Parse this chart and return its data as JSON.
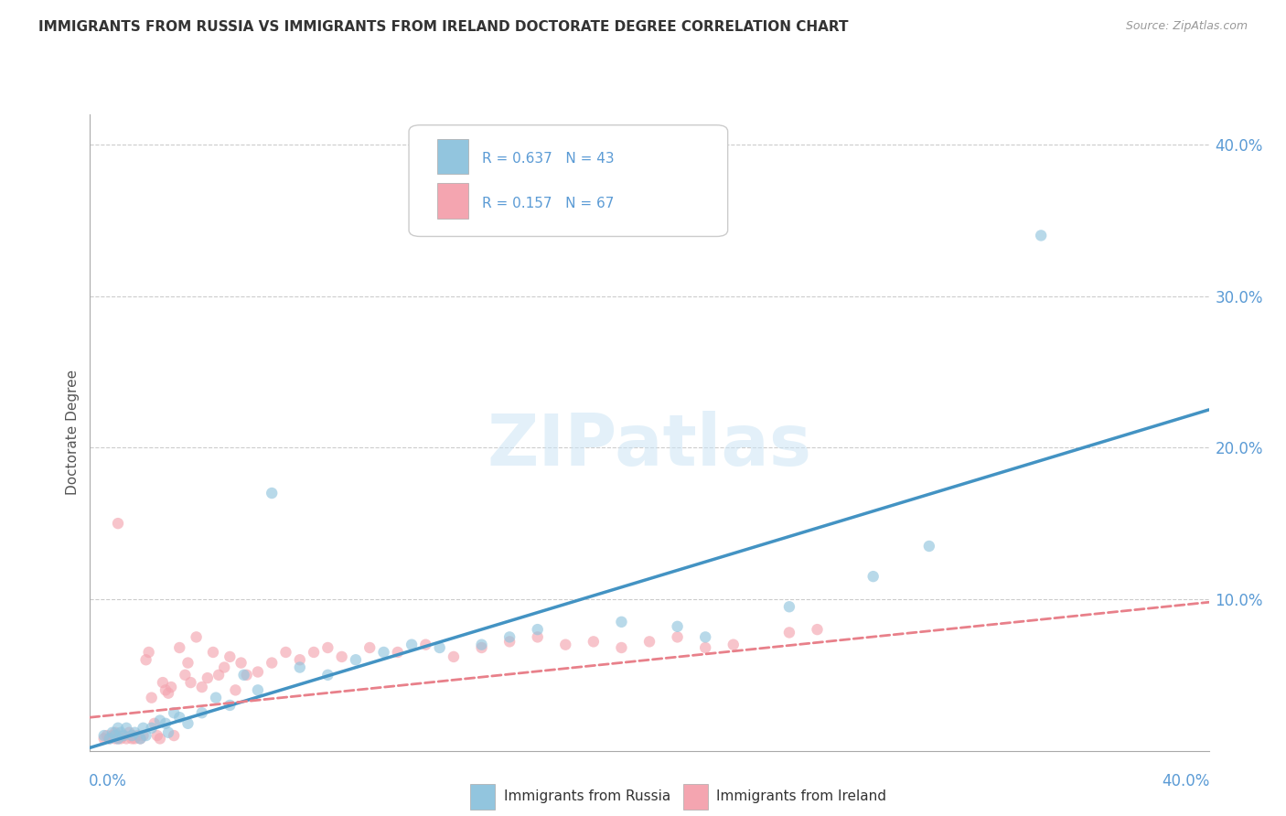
{
  "title": "IMMIGRANTS FROM RUSSIA VS IMMIGRANTS FROM IRELAND DOCTORATE DEGREE CORRELATION CHART",
  "source": "Source: ZipAtlas.com",
  "ylabel": "Doctorate Degree",
  "y_ticks": [
    0.0,
    0.1,
    0.2,
    0.3,
    0.4
  ],
  "y_tick_labels": [
    "",
    "10.0%",
    "20.0%",
    "30.0%",
    "40.0%"
  ],
  "xlim": [
    0.0,
    0.4
  ],
  "ylim": [
    0.0,
    0.42
  ],
  "russia_R": 0.637,
  "russia_N": 43,
  "ireland_R": 0.157,
  "ireland_N": 67,
  "russia_color": "#92c5de",
  "ireland_color": "#f4a5b0",
  "russia_line_color": "#4393c3",
  "ireland_line_color": "#e8808a",
  "watermark": "ZIPatlas",
  "background_color": "#ffffff",
  "scatter_alpha": 0.65,
  "scatter_size": 80,
  "russia_scatter_x": [
    0.005,
    0.007,
    0.008,
    0.009,
    0.01,
    0.01,
    0.011,
    0.012,
    0.013,
    0.015,
    0.016,
    0.018,
    0.019,
    0.02,
    0.022,
    0.025,
    0.027,
    0.028,
    0.03,
    0.032,
    0.035,
    0.04,
    0.045,
    0.05,
    0.055,
    0.06,
    0.065,
    0.075,
    0.085,
    0.095,
    0.105,
    0.115,
    0.125,
    0.14,
    0.15,
    0.16,
    0.19,
    0.21,
    0.22,
    0.25,
    0.28,
    0.3,
    0.34
  ],
  "russia_scatter_y": [
    0.01,
    0.008,
    0.012,
    0.01,
    0.015,
    0.008,
    0.012,
    0.01,
    0.015,
    0.01,
    0.012,
    0.008,
    0.015,
    0.01,
    0.015,
    0.02,
    0.018,
    0.012,
    0.025,
    0.022,
    0.018,
    0.025,
    0.035,
    0.03,
    0.05,
    0.04,
    0.17,
    0.055,
    0.05,
    0.06,
    0.065,
    0.07,
    0.068,
    0.07,
    0.075,
    0.08,
    0.085,
    0.082,
    0.075,
    0.095,
    0.115,
    0.135,
    0.34
  ],
  "ireland_scatter_x": [
    0.005,
    0.006,
    0.007,
    0.008,
    0.009,
    0.009,
    0.01,
    0.01,
    0.01,
    0.011,
    0.012,
    0.013,
    0.014,
    0.015,
    0.015,
    0.016,
    0.017,
    0.018,
    0.019,
    0.02,
    0.021,
    0.022,
    0.023,
    0.024,
    0.025,
    0.026,
    0.027,
    0.028,
    0.029,
    0.03,
    0.032,
    0.034,
    0.035,
    0.036,
    0.038,
    0.04,
    0.042,
    0.044,
    0.046,
    0.048,
    0.05,
    0.052,
    0.054,
    0.056,
    0.06,
    0.065,
    0.07,
    0.075,
    0.08,
    0.085,
    0.09,
    0.1,
    0.11,
    0.12,
    0.13,
    0.14,
    0.15,
    0.16,
    0.17,
    0.18,
    0.19,
    0.2,
    0.21,
    0.22,
    0.23,
    0.25,
    0.26
  ],
  "ireland_scatter_y": [
    0.008,
    0.01,
    0.008,
    0.01,
    0.008,
    0.012,
    0.008,
    0.01,
    0.15,
    0.008,
    0.01,
    0.008,
    0.012,
    0.008,
    0.01,
    0.008,
    0.01,
    0.008,
    0.01,
    0.06,
    0.065,
    0.035,
    0.018,
    0.01,
    0.008,
    0.045,
    0.04,
    0.038,
    0.042,
    0.01,
    0.068,
    0.05,
    0.058,
    0.045,
    0.075,
    0.042,
    0.048,
    0.065,
    0.05,
    0.055,
    0.062,
    0.04,
    0.058,
    0.05,
    0.052,
    0.058,
    0.065,
    0.06,
    0.065,
    0.068,
    0.062,
    0.068,
    0.065,
    0.07,
    0.062,
    0.068,
    0.072,
    0.075,
    0.07,
    0.072,
    0.068,
    0.072,
    0.075,
    0.068,
    0.07,
    0.078,
    0.08
  ],
  "russia_line_x": [
    0.0,
    0.4
  ],
  "russia_line_y": [
    0.002,
    0.225
  ],
  "ireland_line_x": [
    0.0,
    0.4
  ],
  "ireland_line_y": [
    0.022,
    0.098
  ]
}
